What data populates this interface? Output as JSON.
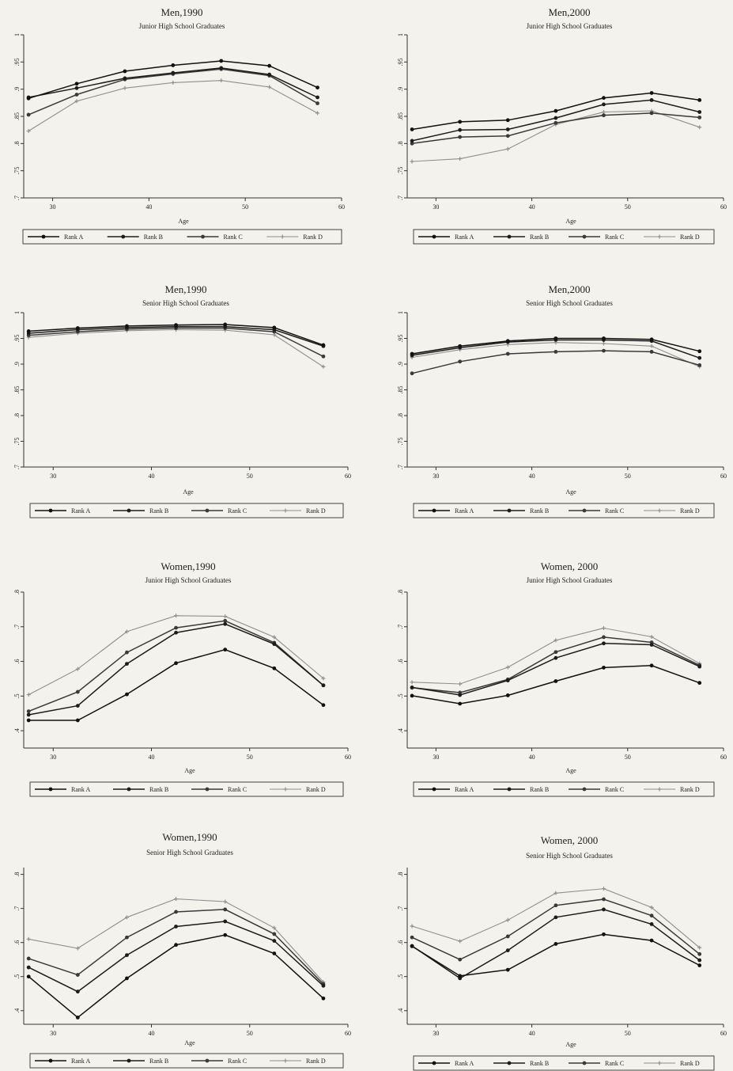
{
  "chart_data": [
    {
      "type": "line",
      "title": "Men,1990",
      "subtitle": "Junior High School Graduates",
      "xlabel": "Age",
      "ylabel": "",
      "xlim": [
        27,
        60
      ],
      "ylim": [
        0.7,
        1.0
      ],
      "x_ticks": [
        30,
        40,
        50,
        60
      ],
      "y_ticks": [
        ".7",
        ".75",
        ".8",
        ".85",
        ".9",
        ".95",
        "1"
      ],
      "legend_position": "bottom",
      "x": [
        27.5,
        32.5,
        37.5,
        42.5,
        47.5,
        52.5,
        57.5
      ],
      "series": [
        {
          "name": "Rank A",
          "values": [
            0.883,
            0.91,
            0.933,
            0.944,
            0.952,
            0.943,
            0.903
          ]
        },
        {
          "name": "Rank B",
          "values": [
            0.885,
            0.902,
            0.92,
            0.93,
            0.939,
            0.927,
            0.885
          ]
        },
        {
          "name": "Rank C",
          "values": [
            0.853,
            0.89,
            0.918,
            0.928,
            0.937,
            0.925,
            0.874
          ]
        },
        {
          "name": "Rank D",
          "values": [
            0.823,
            0.878,
            0.902,
            0.912,
            0.916,
            0.904,
            0.856
          ]
        }
      ]
    },
    {
      "type": "line",
      "title": "Men,2000",
      "subtitle": "Junior High School Graduates",
      "xlabel": "Age",
      "ylabel": "",
      "xlim": [
        27,
        60
      ],
      "ylim": [
        0.7,
        1.0
      ],
      "x_ticks": [
        30,
        40,
        50,
        60
      ],
      "y_ticks": [
        ".7",
        ".75",
        ".8",
        ".85",
        ".9",
        ".95",
        "1"
      ],
      "legend_position": "bottom",
      "x": [
        27.5,
        32.5,
        37.5,
        42.5,
        47.5,
        52.5,
        57.5
      ],
      "series": [
        {
          "name": "Rank A",
          "values": [
            0.826,
            0.84,
            0.843,
            0.86,
            0.884,
            0.893,
            0.88
          ]
        },
        {
          "name": "Rank B",
          "values": [
            0.805,
            0.825,
            0.826,
            0.847,
            0.872,
            0.88,
            0.858
          ]
        },
        {
          "name": "Rank C",
          "values": [
            0.8,
            0.812,
            0.814,
            0.838,
            0.852,
            0.856,
            0.848
          ]
        },
        {
          "name": "Rank D",
          "values": [
            0.767,
            0.772,
            0.79,
            0.835,
            0.858,
            0.86,
            0.83
          ]
        }
      ]
    },
    {
      "type": "line",
      "title": "Men,1990",
      "subtitle": "Senior High School Graduates",
      "xlabel": "Age",
      "ylabel": "",
      "xlim": [
        27,
        60
      ],
      "ylim": [
        0.7,
        1.0
      ],
      "x_ticks": [
        30,
        40,
        50,
        60
      ],
      "y_ticks": [
        ".7",
        ".75",
        ".8",
        ".85",
        ".9",
        ".95",
        "1"
      ],
      "legend_position": "bottom",
      "x": [
        27.5,
        32.5,
        37.5,
        42.5,
        47.5,
        52.5,
        57.5
      ],
      "series": [
        {
          "name": "Rank A",
          "values": [
            0.964,
            0.97,
            0.974,
            0.976,
            0.977,
            0.971,
            0.937
          ]
        },
        {
          "name": "Rank B",
          "values": [
            0.96,
            0.967,
            0.971,
            0.973,
            0.973,
            0.967,
            0.935
          ]
        },
        {
          "name": "Rank C",
          "values": [
            0.956,
            0.963,
            0.968,
            0.97,
            0.97,
            0.963,
            0.915
          ]
        },
        {
          "name": "Rank D",
          "values": [
            0.952,
            0.96,
            0.965,
            0.967,
            0.966,
            0.957,
            0.895
          ]
        }
      ]
    },
    {
      "type": "line",
      "title": "Men,2000",
      "subtitle": "Senior High School Graduates",
      "xlabel": "Age",
      "ylabel": "",
      "xlim": [
        27,
        60
      ],
      "ylim": [
        0.7,
        1.0
      ],
      "x_ticks": [
        30,
        40,
        50,
        60
      ],
      "y_ticks": [
        ".7",
        ".75",
        ".8",
        ".85",
        ".9",
        ".95",
        "1"
      ],
      "legend_position": "bottom",
      "x": [
        27.5,
        32.5,
        37.5,
        42.5,
        47.5,
        52.5,
        57.5
      ],
      "series": [
        {
          "name": "Rank A",
          "values": [
            0.92,
            0.935,
            0.945,
            0.95,
            0.95,
            0.948,
            0.925
          ]
        },
        {
          "name": "Rank B",
          "values": [
            0.917,
            0.932,
            0.943,
            0.947,
            0.947,
            0.945,
            0.912
          ]
        },
        {
          "name": "Rank C",
          "values": [
            0.882,
            0.905,
            0.92,
            0.924,
            0.926,
            0.924,
            0.898
          ]
        },
        {
          "name": "Rank D",
          "values": [
            0.913,
            0.928,
            0.938,
            0.942,
            0.94,
            0.935,
            0.895
          ]
        }
      ]
    },
    {
      "type": "line",
      "title": "Women,1990",
      "subtitle": "Junior High School Graduates",
      "xlabel": "Age",
      "ylabel": "",
      "xlim": [
        27,
        60
      ],
      "ylim": [
        0.35,
        0.8
      ],
      "x_ticks": [
        30,
        40,
        50,
        60
      ],
      "y_ticks": [
        ".4",
        ".5",
        ".6",
        ".7",
        ".8"
      ],
      "legend_position": "bottom",
      "x": [
        27.5,
        32.5,
        37.5,
        42.5,
        47.5,
        52.5,
        57.5
      ],
      "series": [
        {
          "name": "Rank A",
          "values": [
            0.43,
            0.43,
            0.505,
            0.595,
            0.634,
            0.58,
            0.474
          ]
        },
        {
          "name": "Rank B",
          "values": [
            0.446,
            0.472,
            0.593,
            0.683,
            0.708,
            0.65,
            0.531
          ]
        },
        {
          "name": "Rank C",
          "values": [
            0.456,
            0.512,
            0.626,
            0.697,
            0.717,
            0.654,
            0.531
          ]
        },
        {
          "name": "Rank D",
          "values": [
            0.504,
            0.578,
            0.686,
            0.732,
            0.73,
            0.67,
            0.551
          ]
        }
      ]
    },
    {
      "type": "line",
      "title": "Women, 2000",
      "subtitle": "Junior High School Graduates",
      "xlabel": "Age",
      "ylabel": "",
      "xlim": [
        27,
        60
      ],
      "ylim": [
        0.35,
        0.8
      ],
      "x_ticks": [
        30,
        40,
        50,
        60
      ],
      "y_ticks": [
        ".4",
        ".5",
        ".6",
        ".7",
        ".8"
      ],
      "legend_position": "bottom",
      "x": [
        27.5,
        32.5,
        37.5,
        42.5,
        47.5,
        52.5,
        57.5
      ],
      "series": [
        {
          "name": "Rank A",
          "values": [
            0.501,
            0.478,
            0.502,
            0.543,
            0.582,
            0.588,
            0.538
          ]
        },
        {
          "name": "Rank B",
          "values": [
            0.525,
            0.503,
            0.545,
            0.61,
            0.652,
            0.648,
            0.585
          ]
        },
        {
          "name": "Rank C",
          "values": [
            0.524,
            0.51,
            0.548,
            0.627,
            0.67,
            0.655,
            0.589
          ]
        },
        {
          "name": "Rank D",
          "values": [
            0.54,
            0.535,
            0.583,
            0.661,
            0.696,
            0.671,
            0.594
          ]
        }
      ]
    },
    {
      "type": "line",
      "title": "Women,1990",
      "subtitle": "Senior High School Graduates",
      "xlabel": "Age",
      "ylabel": "",
      "xlim": [
        27,
        60
      ],
      "ylim": [
        0.36,
        0.82
      ],
      "x_ticks": [
        30,
        40,
        50,
        60
      ],
      "y_ticks": [
        ".4",
        ".5",
        ".6",
        ".7",
        ".8"
      ],
      "legend_position": "bottom",
      "x": [
        27.5,
        32.5,
        37.5,
        42.5,
        47.5,
        52.5,
        57.5
      ],
      "series": [
        {
          "name": "Rank A",
          "values": [
            0.5,
            0.38,
            0.495,
            0.593,
            0.622,
            0.568,
            0.436
          ]
        },
        {
          "name": "Rank B",
          "values": [
            0.527,
            0.456,
            0.563,
            0.647,
            0.662,
            0.605,
            0.473
          ]
        },
        {
          "name": "Rank C",
          "values": [
            0.553,
            0.505,
            0.615,
            0.69,
            0.697,
            0.625,
            0.478
          ]
        },
        {
          "name": "Rank D",
          "values": [
            0.61,
            0.583,
            0.674,
            0.728,
            0.72,
            0.643,
            0.484
          ]
        }
      ]
    },
    {
      "type": "line",
      "title": "Women, 2000",
      "subtitle": "Senior High School Graduates",
      "xlabel": "Age",
      "ylabel": "",
      "xlim": [
        27,
        60
      ],
      "ylim": [
        0.36,
        0.82
      ],
      "x_ticks": [
        30,
        40,
        50,
        60
      ],
      "y_ticks": [
        ".4",
        ".5",
        ".6",
        ".7",
        ".8"
      ],
      "legend_position": "bottom",
      "x": [
        27.5,
        32.5,
        37.5,
        42.5,
        47.5,
        52.5,
        57.5
      ],
      "series": [
        {
          "name": "Rank A",
          "values": [
            0.589,
            0.502,
            0.52,
            0.596,
            0.624,
            0.606,
            0.533
          ]
        },
        {
          "name": "Rank B",
          "values": [
            0.59,
            0.495,
            0.577,
            0.674,
            0.697,
            0.654,
            0.548
          ]
        },
        {
          "name": "Rank C",
          "values": [
            0.615,
            0.55,
            0.618,
            0.709,
            0.727,
            0.679,
            0.566
          ]
        },
        {
          "name": "Rank D",
          "values": [
            0.648,
            0.604,
            0.666,
            0.745,
            0.758,
            0.703,
            0.585
          ]
        }
      ]
    }
  ],
  "series_colors": [
    "#111111",
    "#1c1c1c",
    "#3a3a3a",
    "#8f8f8f"
  ]
}
